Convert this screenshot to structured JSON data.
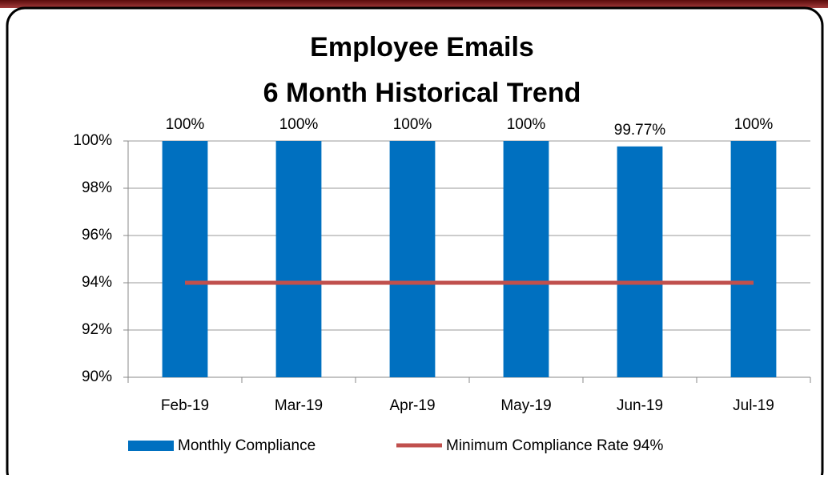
{
  "chart_data": {
    "type": "bar",
    "title": "Employee Emails",
    "subtitle": "6 Month Historical Trend",
    "categories": [
      "Feb-19",
      "Mar-19",
      "Apr-19",
      "May-19",
      "Jun-19",
      "Jul-19"
    ],
    "series": [
      {
        "name": "Monthly Compliance",
        "color": "#0070c0",
        "values": [
          100,
          100,
          100,
          100,
          99.77,
          100
        ],
        "value_labels": [
          "100%",
          "100%",
          "100%",
          "100%",
          "99.77%",
          "100%"
        ]
      },
      {
        "name": "Minimum Compliance Rate 94%",
        "color": "#c0504d",
        "type": "line",
        "values": [
          94,
          94,
          94,
          94,
          94,
          94
        ]
      }
    ],
    "ylim": [
      90,
      100
    ],
    "yticks": [
      {
        "value": 90,
        "label": "90%"
      },
      {
        "value": 92,
        "label": "92%"
      },
      {
        "value": 94,
        "label": "94%"
      },
      {
        "value": 96,
        "label": "96%"
      },
      {
        "value": 98,
        "label": "98%"
      },
      {
        "value": 100,
        "label": "100%"
      }
    ],
    "grid": true,
    "legend": "bottom"
  }
}
